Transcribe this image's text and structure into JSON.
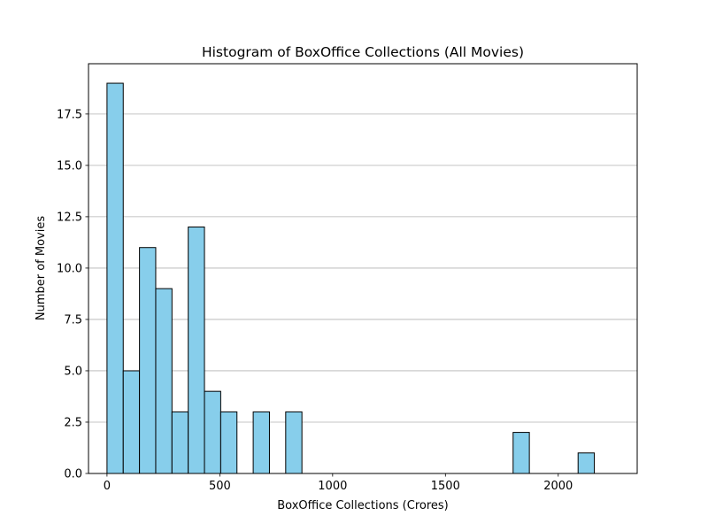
{
  "chart_data": {
    "type": "bar",
    "title": "Histogram of BoxOffice Collections (All Movies)",
    "xlabel": "BoxOffice Collections (Crores)",
    "ylabel": "Number of Movies",
    "xlim": [
      -82,
      2350
    ],
    "ylim": [
      0,
      19.95
    ],
    "grid": "y",
    "bar_color": "#87CEEB",
    "edge_color": "#000000",
    "x_ticks": [
      {
        "value": 0,
        "label": "0"
      },
      {
        "value": 500,
        "label": "500"
      },
      {
        "value": 1000,
        "label": "1000"
      },
      {
        "value": 1500,
        "label": "1500"
      },
      {
        "value": 2000,
        "label": "2000"
      }
    ],
    "y_ticks": [
      {
        "value": 0,
        "label": "0.0"
      },
      {
        "value": 2.5,
        "label": "2.5"
      },
      {
        "value": 5,
        "label": "5.0"
      },
      {
        "value": 7.5,
        "label": "7.5"
      },
      {
        "value": 10,
        "label": "10.0"
      },
      {
        "value": 12.5,
        "label": "12.5"
      },
      {
        "value": 15,
        "label": "15.0"
      },
      {
        "value": 17.5,
        "label": "17.5"
      }
    ],
    "bins": [
      {
        "x0": 0,
        "x1": 72,
        "count": 19
      },
      {
        "x0": 72,
        "x1": 144,
        "count": 5
      },
      {
        "x0": 144,
        "x1": 216,
        "count": 11
      },
      {
        "x0": 216,
        "x1": 288,
        "count": 9
      },
      {
        "x0": 288,
        "x1": 360,
        "count": 3
      },
      {
        "x0": 360,
        "x1": 432,
        "count": 12
      },
      {
        "x0": 432,
        "x1": 504,
        "count": 4
      },
      {
        "x0": 504,
        "x1": 576,
        "count": 3
      },
      {
        "x0": 576,
        "x1": 648,
        "count": 0
      },
      {
        "x0": 648,
        "x1": 720,
        "count": 3
      },
      {
        "x0": 720,
        "x1": 792,
        "count": 0
      },
      {
        "x0": 792,
        "x1": 864,
        "count": 3
      },
      {
        "x0": 864,
        "x1": 936,
        "count": 0
      },
      {
        "x0": 936,
        "x1": 1008,
        "count": 0
      },
      {
        "x0": 1008,
        "x1": 1080,
        "count": 0
      },
      {
        "x0": 1080,
        "x1": 1152,
        "count": 0
      },
      {
        "x0": 1152,
        "x1": 1224,
        "count": 0
      },
      {
        "x0": 1224,
        "x1": 1296,
        "count": 0
      },
      {
        "x0": 1296,
        "x1": 1368,
        "count": 0
      },
      {
        "x0": 1368,
        "x1": 1440,
        "count": 0
      },
      {
        "x0": 1440,
        "x1": 1512,
        "count": 0
      },
      {
        "x0": 1512,
        "x1": 1584,
        "count": 0
      },
      {
        "x0": 1584,
        "x1": 1656,
        "count": 0
      },
      {
        "x0": 1656,
        "x1": 1728,
        "count": 0
      },
      {
        "x0": 1728,
        "x1": 1800,
        "count": 0
      },
      {
        "x0": 1800,
        "x1": 1872,
        "count": 2
      },
      {
        "x0": 1872,
        "x1": 1944,
        "count": 0
      },
      {
        "x0": 1944,
        "x1": 2016,
        "count": 0
      },
      {
        "x0": 2016,
        "x1": 2088,
        "count": 0
      },
      {
        "x0": 2088,
        "x1": 2160,
        "count": 1
      }
    ]
  }
}
